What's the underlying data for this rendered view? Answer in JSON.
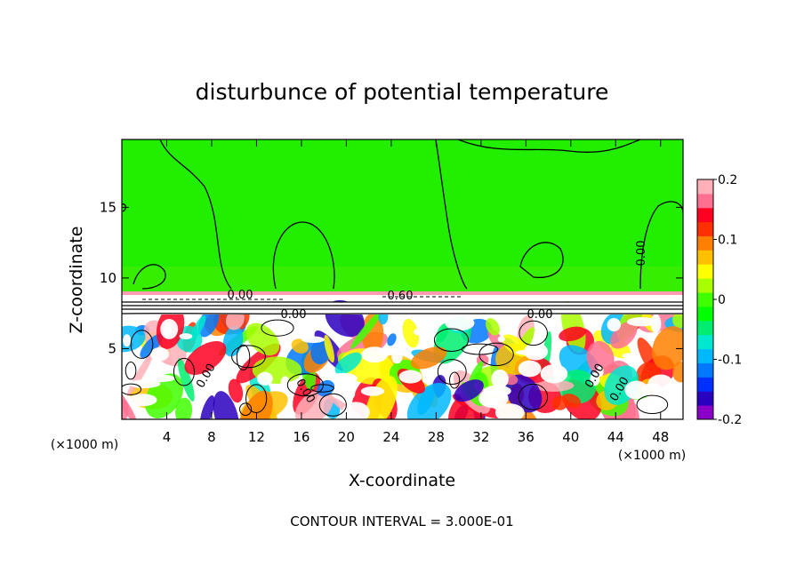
{
  "chart_data": {
    "type": "heatmap",
    "title": "disturbunce of potential temperature",
    "xlabel": "X-coordinate",
    "ylabel": "Z-coordinate",
    "x_unit_left": "(×1000 m)",
    "x_unit_right": "(×1000 m)",
    "xticks": [
      4,
      8,
      12,
      16,
      20,
      24,
      28,
      32,
      36,
      40,
      44,
      48
    ],
    "yticks": [
      5,
      10,
      15
    ],
    "xlim": [
      0,
      50
    ],
    "ylim": [
      0,
      19.8
    ],
    "colorbar": {
      "min": -0.2,
      "max": 0.2,
      "labels": [
        "0.2",
        "0.1",
        "0",
        "-0.1",
        "-0.2"
      ],
      "label_values": [
        0.2,
        0.1,
        0,
        -0.1,
        -0.2
      ],
      "colors": [
        "#8a00c8",
        "#2a00c0",
        "#0030ff",
        "#0078ff",
        "#00b8ff",
        "#00e8d0",
        "#00ee70",
        "#00ff00",
        "#40ff00",
        "#a8ff00",
        "#ffff00",
        "#ffc000",
        "#ff8000",
        "#ff3000",
        "#ff0020",
        "#ff7090",
        "#ffb0b8"
      ]
    },
    "contour_labels": [
      "0.00",
      "0.60",
      "0.00",
      "0.00",
      "0.00",
      "0.00",
      "0.00",
      "0.00",
      "0.00"
    ],
    "footer": "CONTOUR INTERVAL = 3.000E-01"
  }
}
